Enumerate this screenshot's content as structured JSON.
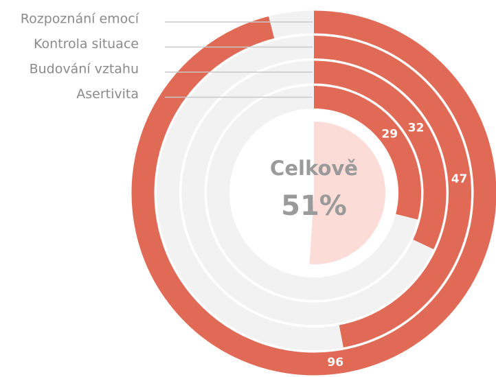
{
  "chart_data": {
    "type": "radial_bar",
    "categories": [
      "Rozpoznání emocí",
      "Kontrola situace",
      "Budování vztahu",
      "Asertivita"
    ],
    "values": [
      96,
      47,
      32,
      29
    ],
    "rlim": [
      0,
      100
    ],
    "color": "#e06a55",
    "track_color": "#f2f2f2",
    "total": {
      "label": "Celkově",
      "value": 51,
      "value_label": "51%",
      "color": "#fbdcd6"
    }
  }
}
